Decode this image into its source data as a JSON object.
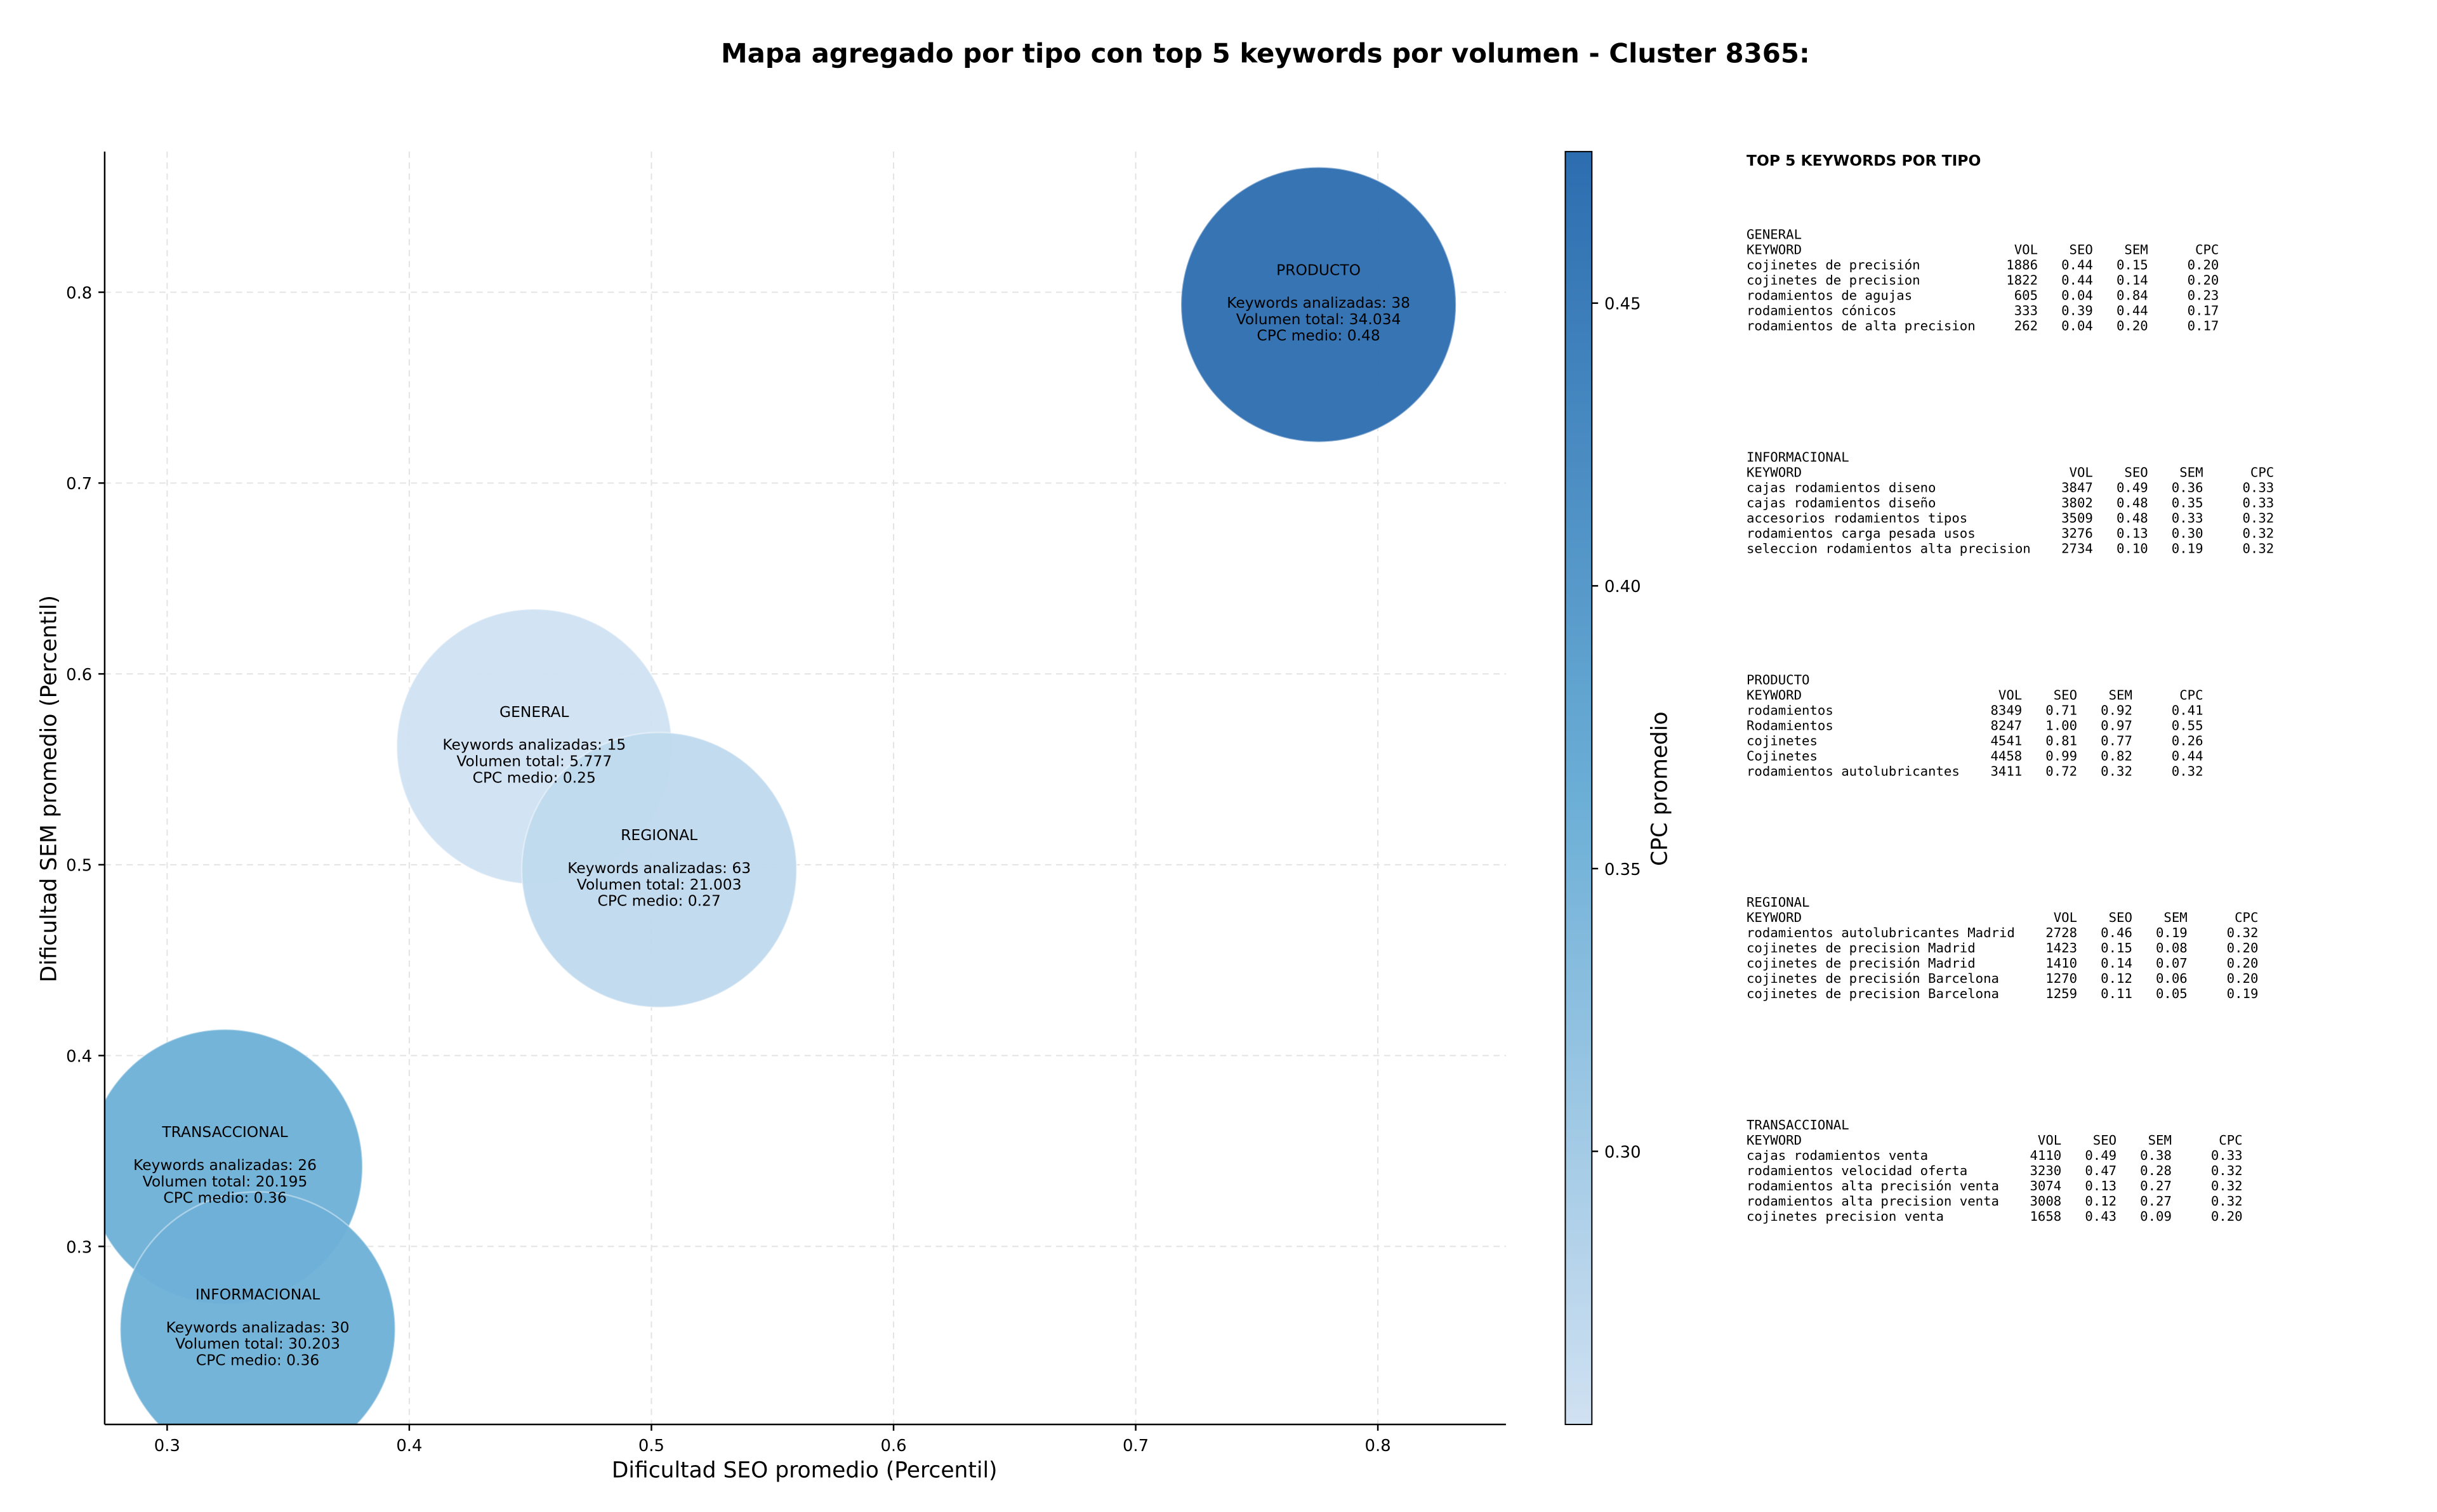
{
  "chart_data": {
    "type": "bubble",
    "title": "Mapa agregado por tipo con top 5 keywords por volumen - Cluster 8365:",
    "x_label": "Dificultad SEO promedio (Percentil)",
    "y_label": "Dificultad SEM promedio (Percentil)",
    "colorbar_label": "CPC promedio",
    "xlim": [
      0.2742,
      0.8529
    ],
    "ylim": [
      0.2067,
      0.8737
    ],
    "xticks": [
      0.3,
      0.4,
      0.5,
      0.6,
      0.7,
      0.8
    ],
    "yticks": [
      0.3,
      0.4,
      0.5,
      0.6,
      0.7,
      0.8
    ],
    "grid": true,
    "clim": [
      0.2517,
      0.4768
    ],
    "cticks": [
      {
        "value": 0.3,
        "label": "0.30"
      },
      {
        "value": 0.35,
        "label": "0.35"
      },
      {
        "value": 0.4,
        "label": "0.40"
      },
      {
        "value": 0.45,
        "label": "0.45"
      }
    ],
    "colorscale": [
      "#d0e1f2",
      "#6aaed6",
      "#2c6db0"
    ],
    "points": [
      {
        "name": "PRODUCTO",
        "x": 0.7755,
        "y": 0.7935,
        "cpc": 0.48,
        "lines": [
          "Keywords analizadas: 38",
          "Volumen total: 34.034",
          "CPC medio: 0.48"
        ]
      },
      {
        "name": "GENERAL",
        "x": 0.4516,
        "y": 0.5619,
        "cpc": 0.25,
        "lines": [
          "Keywords analizadas: 15",
          "Volumen total: 5.777",
          "CPC medio: 0.25"
        ]
      },
      {
        "name": "REGIONAL",
        "x": 0.5032,
        "y": 0.4973,
        "cpc": 0.27,
        "lines": [
          "Keywords analizadas: 63",
          "Volumen total: 21.003",
          "CPC medio: 0.27"
        ]
      },
      {
        "name": "TRANSACCIONAL",
        "x": 0.3239,
        "y": 0.3417,
        "cpc": 0.36,
        "lines": [
          "Keywords analizadas: 26",
          "Volumen total: 20.195",
          "CPC medio: 0.36"
        ]
      },
      {
        "name": "INFORMACIONAL",
        "x": 0.3374,
        "y": 0.2566,
        "cpc": 0.36,
        "lines": [
          "Keywords analizadas: 30",
          "Volumen total: 30.203",
          "CPC medio: 0.36"
        ]
      }
    ]
  },
  "panel": {
    "title": "TOP 5 KEYWORDS POR TIPO",
    "header": [
      "KEYWORD",
      "VOL",
      "SEO",
      "SEM",
      "CPC"
    ],
    "groups": [
      {
        "name": "GENERAL",
        "rows": [
          [
            "cojinetes de precisión",
            "1886",
            "0.44",
            "0.15",
            "0.20"
          ],
          [
            "cojinetes de precision",
            "1822",
            "0.44",
            "0.14",
            "0.20"
          ],
          [
            "rodamientos de agujas",
            "605",
            "0.04",
            "0.84",
            "0.23"
          ],
          [
            "rodamientos cónicos",
            "333",
            "0.39",
            "0.44",
            "0.17"
          ],
          [
            "rodamientos de alta precision",
            "262",
            "0.04",
            "0.20",
            "0.17"
          ]
        ]
      },
      {
        "name": "INFORMACIONAL",
        "rows": [
          [
            "cajas rodamientos diseno",
            "3847",
            "0.49",
            "0.36",
            "0.33"
          ],
          [
            "cajas rodamientos diseño",
            "3802",
            "0.48",
            "0.35",
            "0.33"
          ],
          [
            "accesorios rodamientos tipos",
            "3509",
            "0.48",
            "0.33",
            "0.32"
          ],
          [
            "rodamientos carga pesada usos",
            "3276",
            "0.13",
            "0.30",
            "0.32"
          ],
          [
            "seleccion rodamientos alta precision",
            "2734",
            "0.10",
            "0.19",
            "0.32"
          ]
        ]
      },
      {
        "name": "PRODUCTO",
        "rows": [
          [
            "rodamientos",
            "8349",
            "0.71",
            "0.92",
            "0.41"
          ],
          [
            "Rodamientos",
            "8247",
            "1.00",
            "0.97",
            "0.55"
          ],
          [
            "cojinetes",
            "4541",
            "0.81",
            "0.77",
            "0.26"
          ],
          [
            "Cojinetes",
            "4458",
            "0.99",
            "0.82",
            "0.44"
          ],
          [
            "rodamientos autolubricantes",
            "3411",
            "0.72",
            "0.32",
            "0.32"
          ]
        ]
      },
      {
        "name": "REGIONAL",
        "rows": [
          [
            "rodamientos autolubricantes Madrid",
            "2728",
            "0.46",
            "0.19",
            "0.32"
          ],
          [
            "cojinetes de precision Madrid",
            "1423",
            "0.15",
            "0.08",
            "0.20"
          ],
          [
            "cojinetes de precisión Madrid",
            "1410",
            "0.14",
            "0.07",
            "0.20"
          ],
          [
            "cojinetes de precisión Barcelona",
            "1270",
            "0.12",
            "0.06",
            "0.20"
          ],
          [
            "cojinetes de precision Barcelona",
            "1259",
            "0.11",
            "0.05",
            "0.19"
          ]
        ]
      },
      {
        "name": "TRANSACCIONAL",
        "rows": [
          [
            "cajas rodamientos venta",
            "4110",
            "0.49",
            "0.38",
            "0.33"
          ],
          [
            "rodamientos velocidad oferta",
            "3230",
            "0.47",
            "0.28",
            "0.32"
          ],
          [
            "rodamientos alta precisión venta",
            "3074",
            "0.13",
            "0.27",
            "0.32"
          ],
          [
            "rodamientos alta precision venta",
            "3008",
            "0.12",
            "0.27",
            "0.32"
          ],
          [
            "cojinetes precision venta",
            "1658",
            "0.43",
            "0.09",
            "0.20"
          ]
        ]
      }
    ]
  }
}
